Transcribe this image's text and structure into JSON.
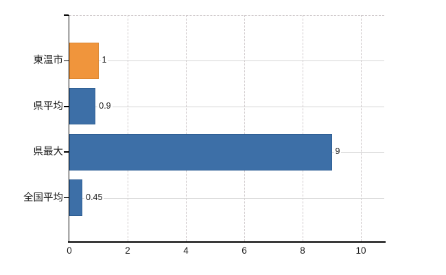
{
  "chart_data": {
    "type": "bar",
    "orientation": "horizontal",
    "title": "",
    "xlabel": "",
    "ylabel": "",
    "categories": [
      "東温市",
      "県平均",
      "県最大",
      "全国平均"
    ],
    "values": [
      1,
      0.9,
      9,
      0.45
    ],
    "value_labels": [
      "1",
      "0.9",
      "9",
      "0.45"
    ],
    "bar_colors": [
      "#f0953c",
      "#3d6fa7",
      "#3d6fa7",
      "#3d6fa7"
    ],
    "bar_border_colors": [
      "#da842e",
      "#2f5f94",
      "#2f5f94",
      "#2f5f94"
    ],
    "xlim": [
      0,
      10.8
    ],
    "x_ticks": [
      0,
      2,
      4,
      6,
      8,
      10
    ],
    "x_tick_labels": [
      "0",
      "2",
      "4",
      "6",
      "8",
      "10"
    ],
    "grid": "on",
    "legend": "none",
    "colors": {
      "axis": "#000000",
      "grid_horizontal": "#d4d4d4",
      "grid_vertical": "#cfc9cb",
      "text": "#1a1a1a",
      "background": "#ffffff"
    }
  }
}
